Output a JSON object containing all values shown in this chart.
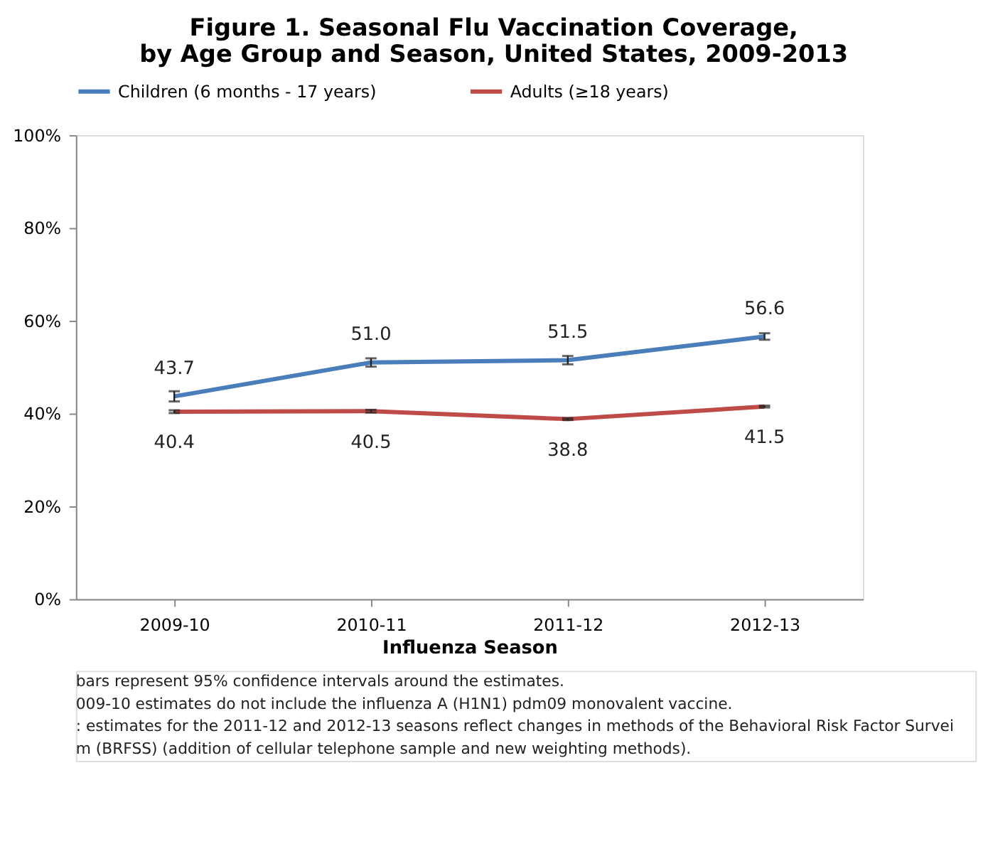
{
  "chart_data": {
    "type": "line",
    "title": [
      "Figure 1. Seasonal Flu Vaccination Coverage,",
      "by Age Group and Season, United States, 2009-2013"
    ],
    "xlabel": "Influenza Season",
    "categories": [
      "2009-10",
      "2010-11",
      "2011-12",
      "2012-13"
    ],
    "series": [
      {
        "name": "Children (6 months - 17 years)",
        "color": "#4a7ebb",
        "values": [
          43.7,
          51.0,
          51.5,
          56.6
        ],
        "value_labels": [
          "43.7",
          "51.0",
          "51.5",
          "56.6"
        ],
        "errors": [
          1.1,
          0.9,
          0.9,
          0.7
        ]
      },
      {
        "name": "Adults (≥18 years)",
        "color": "#be4b48",
        "values": [
          40.4,
          40.5,
          38.8,
          41.5
        ],
        "value_labels": [
          "40.4",
          "40.5",
          "38.8",
          "41.5"
        ],
        "errors": [
          0.3,
          0.3,
          0.2,
          0.2
        ]
      }
    ],
    "ylim": [
      0,
      100
    ],
    "yticks": [
      {
        "value": 0,
        "label": "0%"
      },
      {
        "value": 20,
        "label": "20%"
      },
      {
        "value": 40,
        "label": "40%"
      },
      {
        "value": 60,
        "label": "60%"
      },
      {
        "value": 80,
        "label": "80%"
      },
      {
        "value": 100,
        "label": "100%"
      }
    ],
    "grid": false,
    "legend": "top",
    "marker": "none",
    "line_style": "solid",
    "annotations": [
      "bars represent 95% confidence intervals around the estimates.",
      "009-10 estimates do not include the influenza A (H1N1) pdm09 monovalent vaccine.",
      ": estimates for the 2011-12 and 2012-13 seasons reflect changes in methods of the Behavioral Risk Factor Survei",
      "m (BRFSS) (addition of cellular telephone sample and new weighting methods)."
    ]
  }
}
